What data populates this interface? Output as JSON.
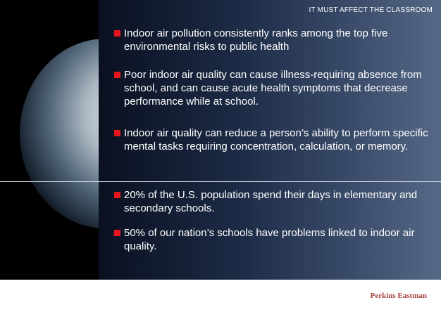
{
  "header": {
    "title": "IT MUST AFFECT THE CLASSROOM"
  },
  "sections": [
    {
      "bullets": [
        "Indoor air pollution consistently ranks among the top five environmental risks to public health",
        "Poor indoor air quality can cause illness-requiring absence from school, and can cause acute health symptoms that decrease performance while at school.",
        "Indoor air quality can reduce a person’s ability to perform specific mental tasks requiring concentration, calculation, or memory."
      ]
    },
    {
      "bullets": [
        "20% of the U.S. population spend their days in elementary and secondary schools.",
        "50% of our nation’s schools have problems linked to indoor air quality."
      ]
    }
  ],
  "footer": {
    "brand": "Perkins Eastman"
  }
}
